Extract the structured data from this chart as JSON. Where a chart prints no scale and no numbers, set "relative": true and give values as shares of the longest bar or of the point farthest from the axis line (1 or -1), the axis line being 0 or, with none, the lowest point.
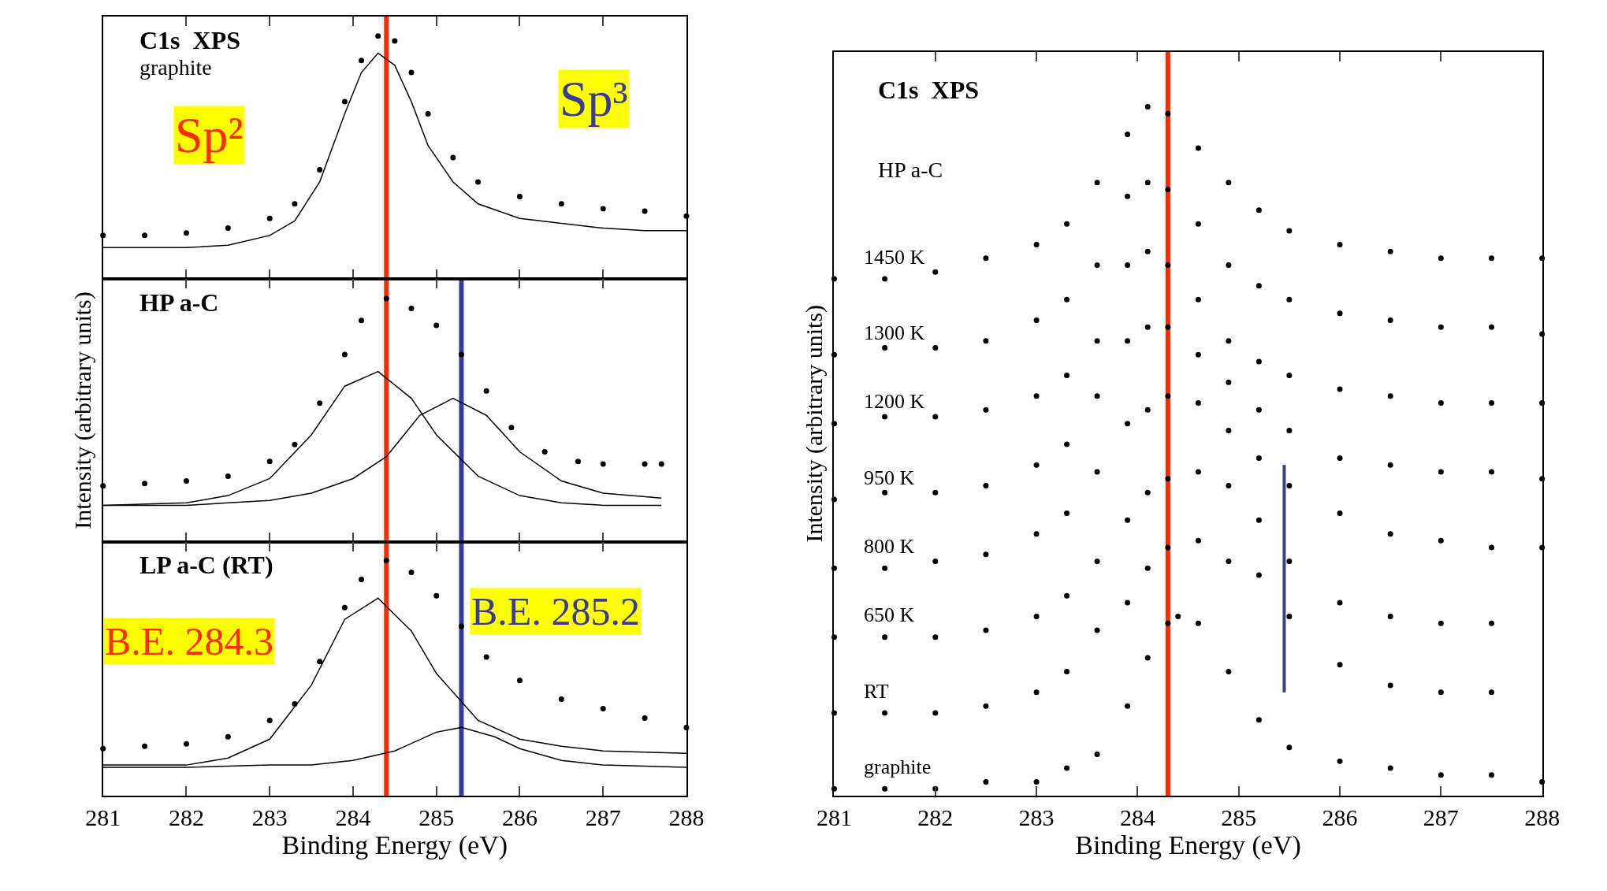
{
  "chart_data": [
    {
      "type": "scatter",
      "relative": true,
      "xlim": [
        281,
        288
      ],
      "xticks": [
        281,
        282,
        283,
        284,
        285,
        286,
        287,
        288
      ],
      "tick_labels": false,
      "legend": false,
      "annotations": [
        "C1s  XPS",
        "graphite",
        "Sp²",
        "Sp³"
      ],
      "ref_lines": [
        {
          "axis": "x",
          "value": 284.4,
          "color": "#ff2a00"
        }
      ],
      "x": [
        281,
        281.5,
        282,
        282.5,
        283,
        283.3,
        283.6,
        283.9,
        284.1,
        284.3,
        284.5,
        284.7,
        284.9,
        285.2,
        285.5,
        286,
        286.5,
        287,
        287.5,
        288
      ],
      "series": [
        {
          "marker": "circle",
          "color": "#000000",
          "values": [
            0.18,
            0.18,
            0.19,
            0.21,
            0.25,
            0.31,
            0.45,
            0.73,
            0.9,
            1.0,
            0.98,
            0.85,
            0.68,
            0.5,
            0.4,
            0.34,
            0.31,
            0.29,
            0.28,
            0.26
          ]
        },
        {
          "type": "line",
          "marker": "none",
          "line_style": "solid",
          "color": "#000000",
          "values": [
            0.13,
            0.13,
            0.13,
            0.14,
            0.18,
            0.24,
            0.4,
            0.68,
            0.85,
            0.93,
            0.88,
            0.73,
            0.55,
            0.4,
            0.31,
            0.25,
            0.23,
            0.21,
            0.2,
            0.2
          ]
        }
      ]
    },
    {
      "type": "scatter",
      "relative": true,
      "xlim": [
        281,
        288
      ],
      "xticks": [
        281,
        282,
        283,
        284,
        285,
        286,
        287,
        288
      ],
      "tick_labels": false,
      "legend": false,
      "ylabel": "Intensity (arbitrary units)",
      "annotations": [
        "HP a-C"
      ],
      "ref_lines": [
        {
          "axis": "x",
          "value": 284.4,
          "color": "#ff2a00"
        },
        {
          "axis": "x",
          "value": 285.3,
          "color": "#3a3a9a"
        }
      ],
      "series": [
        {
          "marker": "circle",
          "color": "#000000",
          "x": [
            281,
            281.5,
            282,
            282.5,
            283,
            283.3,
            283.6,
            283.9,
            284.1,
            284.4,
            284.7,
            285,
            285.3,
            285.6,
            285.9,
            286.3,
            286.7,
            287,
            287.5,
            287.7
          ],
          "values": [
            0.23,
            0.24,
            0.25,
            0.27,
            0.33,
            0.4,
            0.57,
            0.77,
            0.91,
            1.0,
            0.96,
            0.89,
            0.77,
            0.62,
            0.47,
            0.37,
            0.33,
            0.32,
            0.32,
            0.32
          ]
        },
        {
          "type": "line",
          "marker": "none",
          "line_style": "solid",
          "color": "#000000",
          "x": [
            281,
            282,
            282.5,
            283,
            283.5,
            283.9,
            284.3,
            284.7,
            285,
            285.5,
            286,
            286.5,
            287,
            287.7
          ],
          "values": [
            0.15,
            0.16,
            0.19,
            0.26,
            0.44,
            0.64,
            0.7,
            0.59,
            0.44,
            0.27,
            0.19,
            0.16,
            0.15,
            0.15
          ]
        },
        {
          "type": "line",
          "marker": "none",
          "line_style": "solid",
          "color": "#000000",
          "x": [
            281,
            282,
            282.5,
            283,
            283.5,
            284,
            284.4,
            284.8,
            285.2,
            285.6,
            286,
            286.5,
            287,
            287.7
          ],
          "values": [
            0.15,
            0.15,
            0.16,
            0.17,
            0.2,
            0.26,
            0.35,
            0.52,
            0.59,
            0.52,
            0.37,
            0.25,
            0.2,
            0.18
          ]
        }
      ]
    },
    {
      "type": "scatter",
      "relative": true,
      "xlim": [
        281,
        288
      ],
      "xticks": [
        281,
        282,
        283,
        284,
        285,
        286,
        287,
        288
      ],
      "tick_labels": "x",
      "legend": false,
      "xlabel": "Binding Energy (eV)",
      "annotations": [
        "LP a-C (RT)"
      ],
      "ref_lines": [
        {
          "axis": "x",
          "value": 284.4,
          "color": "#ff2a00",
          "label": "B.E. 284.3"
        },
        {
          "axis": "x",
          "value": 285.3,
          "color": "#3a3a9a",
          "label": "B.E. 285.2"
        }
      ],
      "series": [
        {
          "marker": "circle",
          "color": "#000000",
          "x": [
            281,
            281.5,
            282,
            282.5,
            283,
            283.3,
            283.6,
            283.9,
            284.1,
            284.4,
            284.7,
            285,
            285.3,
            285.6,
            286,
            286.5,
            287,
            287.5,
            288
          ],
          "values": [
            0.2,
            0.21,
            0.22,
            0.25,
            0.32,
            0.39,
            0.57,
            0.8,
            0.92,
            1.0,
            0.95,
            0.85,
            0.72,
            0.59,
            0.49,
            0.41,
            0.37,
            0.33,
            0.29
          ]
        },
        {
          "type": "line",
          "marker": "none",
          "line_style": "solid",
          "color": "#000000",
          "x": [
            281,
            282,
            282.5,
            283,
            283.5,
            283.9,
            284.3,
            284.7,
            285,
            285.5,
            286,
            286.5,
            287,
            288
          ],
          "values": [
            0.13,
            0.13,
            0.16,
            0.24,
            0.47,
            0.75,
            0.84,
            0.7,
            0.52,
            0.32,
            0.24,
            0.21,
            0.19,
            0.18
          ]
        },
        {
          "type": "line",
          "marker": "none",
          "line_style": "solid",
          "color": "#000000",
          "x": [
            281,
            282,
            283,
            283.5,
            284,
            284.5,
            285,
            285.3,
            285.7,
            286,
            286.5,
            287,
            288
          ],
          "values": [
            0.12,
            0.12,
            0.13,
            0.13,
            0.15,
            0.19,
            0.27,
            0.29,
            0.25,
            0.2,
            0.15,
            0.13,
            0.12
          ]
        }
      ]
    },
    {
      "type": "scatter",
      "relative": true,
      "xlim": [
        281,
        288
      ],
      "xticks": [
        281,
        282,
        283,
        284,
        285,
        286,
        287,
        288
      ],
      "tick_labels": "x",
      "legend": false,
      "xlabel": "Binding Energy (eV)",
      "ylabel": "Intensity (arbitrary units)",
      "annotations": [
        "C1s  XPS",
        "HP a-C"
      ],
      "ref_lines": [
        {
          "axis": "x",
          "value": 284.3,
          "color": "#ff2a00"
        }
      ],
      "x": [
        281,
        281.5,
        282,
        282.5,
        283,
        283.3,
        283.6,
        283.9,
        284.1,
        284.3,
        284.6,
        284.9,
        285.2,
        285.5,
        286,
        286.5,
        287,
        287.5,
        288
      ],
      "series": [
        {
          "name": "1450 K",
          "marker": "circle",
          "color": "#000000",
          "values": [
            0.75,
            0.75,
            0.76,
            0.78,
            0.8,
            0.83,
            0.89,
            0.96,
            1.0,
            0.99,
            0.94,
            0.89,
            0.85,
            0.82,
            0.8,
            0.79,
            0.78,
            0.78,
            0.78
          ]
        },
        {
          "name": "1300 K",
          "marker": "circle",
          "color": "#000000",
          "values": [
            0.64,
            0.65,
            0.65,
            0.66,
            0.69,
            0.72,
            0.77,
            0.87,
            0.89,
            0.88,
            0.83,
            0.77,
            0.74,
            0.72,
            0.7,
            0.69,
            0.68,
            0.68,
            0.67
          ]
        },
        {
          "name": "1200 K",
          "marker": "circle",
          "color": "#000000",
          "values": [
            0.54,
            0.55,
            0.55,
            0.56,
            0.58,
            0.61,
            0.66,
            0.77,
            0.79,
            0.77,
            0.72,
            0.66,
            0.63,
            0.61,
            0.59,
            0.58,
            0.57,
            0.57,
            0.57
          ]
        },
        {
          "name": "950 K",
          "marker": "circle",
          "color": "#000000",
          "values": [
            0.43,
            0.44,
            0.44,
            0.45,
            0.48,
            0.51,
            0.58,
            0.66,
            0.68,
            0.68,
            0.64,
            0.6,
            0.56,
            0.53,
            0.49,
            0.48,
            0.47,
            0.47,
            0.46
          ]
        },
        {
          "name": "800 K",
          "marker": "circle",
          "color": "#000000",
          "values": [
            0.33,
            0.33,
            0.34,
            0.35,
            0.38,
            0.41,
            0.47,
            0.54,
            0.56,
            0.58,
            0.57,
            0.53,
            0.49,
            0.45,
            0.41,
            0.38,
            0.37,
            0.36,
            0.36
          ]
        },
        {
          "name": "650 K",
          "marker": "circle",
          "color": "#000000",
          "values": [
            0.23,
            0.23,
            0.23,
            0.24,
            0.26,
            0.29,
            0.34,
            0.4,
            0.44,
            0.46,
            0.47,
            0.45,
            0.4,
            0.34,
            0.28,
            0.26,
            0.25,
            0.25,
            null
          ]
        },
        {
          "name": "RT",
          "marker": "circle",
          "color": "#000000",
          "values": [
            0.12,
            0.12,
            0.12,
            0.13,
            0.15,
            0.18,
            0.24,
            0.28,
            0.33,
            0.36,
            0.37,
            0.34,
            0.32,
            0.26,
            0.19,
            0.16,
            0.15,
            0.15,
            null
          ]
        },
        {
          "name": "graphite",
          "marker": "circle",
          "color": "#000000",
          "x": [
            281,
            281.5,
            282,
            282.5,
            283,
            283.3,
            283.6,
            283.9,
            284.1,
            284.3,
            284.4,
            284.6,
            284.9,
            285.2,
            285.5,
            286,
            286.5,
            287,
            287.5,
            288
          ],
          "values": [
            0.01,
            0.01,
            0.01,
            0.02,
            0.02,
            0.04,
            0.06,
            0.13,
            0.2,
            0.25,
            0.26,
            0.25,
            0.18,
            0.11,
            0.07,
            0.05,
            0.04,
            0.03,
            0.03,
            0.02
          ]
        },
        {
          "type": "line",
          "marker": "none",
          "line_style": "solid",
          "color": "#3a3a9a",
          "x": [
            285.45,
            285.45
          ],
          "values": [
            0.15,
            0.48
          ]
        }
      ]
    }
  ]
}
